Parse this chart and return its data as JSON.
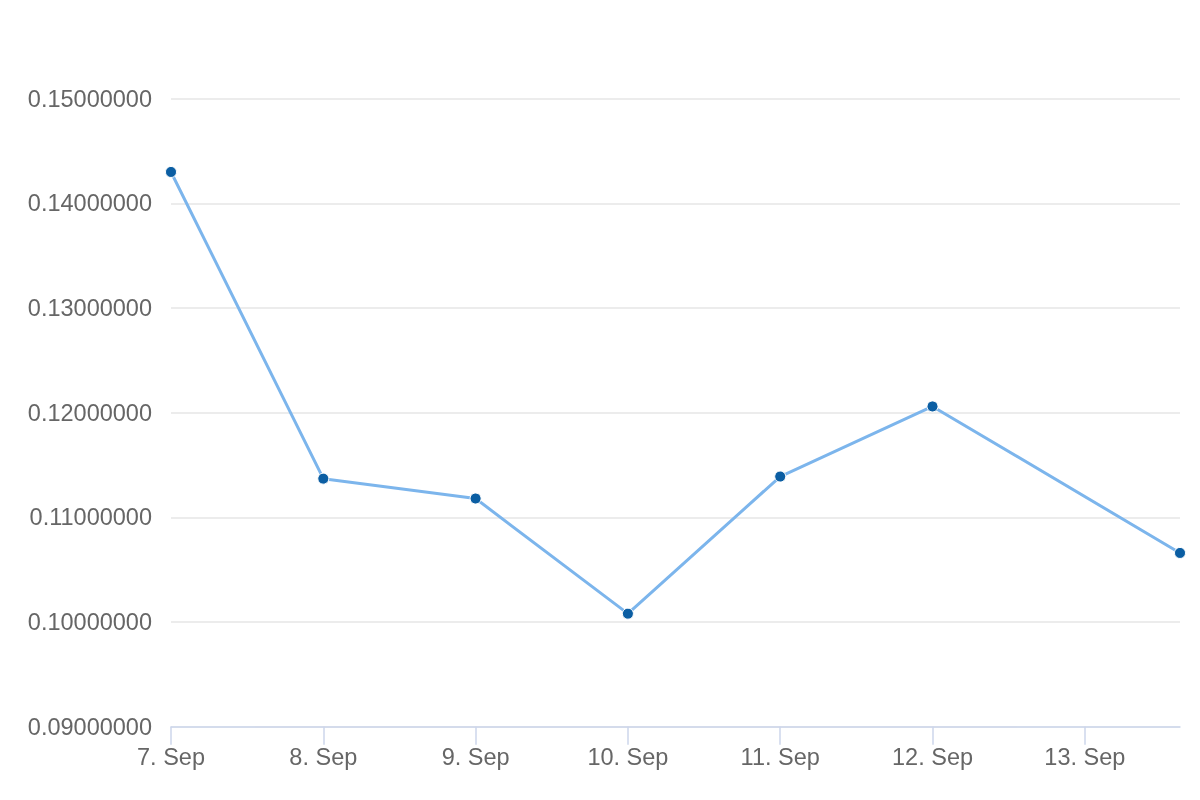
{
  "chart_data": {
    "type": "line",
    "x": [
      "--09-07",
      "--09-08",
      "--09-09",
      "--09-10",
      "--09-11",
      "--09-12",
      "--09-13T15:00"
    ],
    "series": [
      {
        "color": "#7cb5ec",
        "colors": [
          "#0b5ea3",
          "#0b5ea3",
          "#0b5ea3",
          "#0b5ea3",
          "#0b5ea3",
          "#0b5ea3",
          "#0b5ea3"
        ],
        "values": [
          0.143,
          0.1137,
          0.1118,
          0.1008,
          0.1139,
          0.1206,
          0.1066
        ]
      }
    ],
    "xlim": [
      "--09-07",
      "--09-13T15:00"
    ],
    "xticks": [
      {
        "value": "--09-07",
        "label": "7. Sep"
      },
      {
        "value": "--09-08",
        "label": "8. Sep"
      },
      {
        "value": "--09-09",
        "label": "9. Sep"
      },
      {
        "value": "--09-10",
        "label": "10. Sep"
      },
      {
        "value": "--09-11",
        "label": "11. Sep"
      },
      {
        "value": "--09-12",
        "label": "12. Sep"
      },
      {
        "value": "--09-13",
        "label": "13. Sep"
      }
    ],
    "ylim": [
      0.09,
      0.15
    ],
    "yticks": [
      {
        "value": 0.09,
        "label": "0.09000000"
      },
      {
        "value": 0.1,
        "label": "0.10000000"
      },
      {
        "value": 0.11,
        "label": "0.11000000"
      },
      {
        "value": 0.12,
        "label": "0.12000000"
      },
      {
        "value": 0.13,
        "label": "0.13000000"
      },
      {
        "value": 0.14,
        "label": "0.14000000"
      },
      {
        "value": 0.15,
        "label": "0.15000000"
      }
    ],
    "grid": "y",
    "marker": "circle",
    "line_style": "solid"
  }
}
